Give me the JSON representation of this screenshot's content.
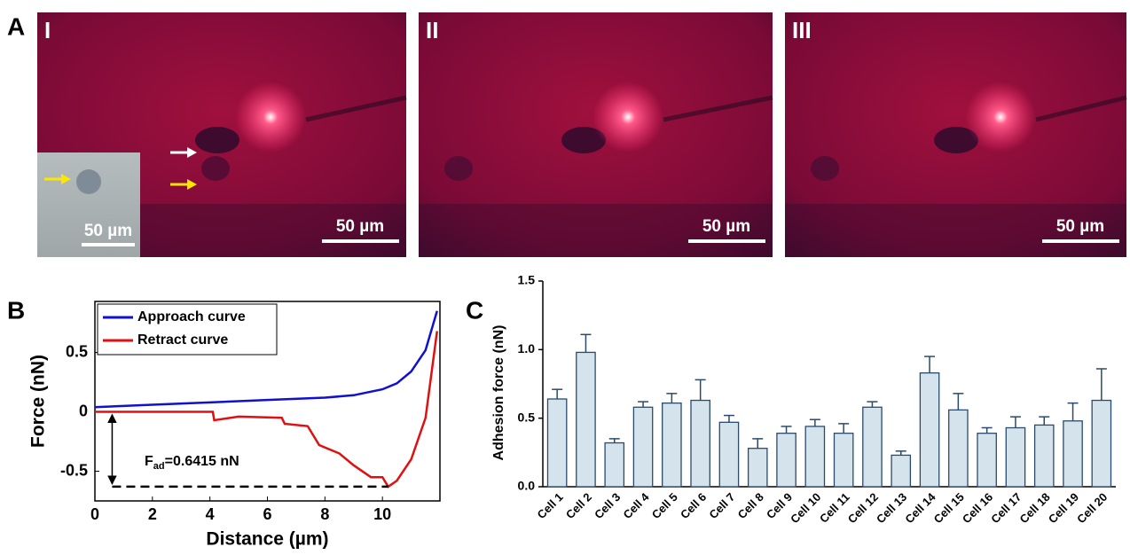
{
  "panels": {
    "labels": [
      "A",
      "B",
      "C"
    ],
    "images": [
      {
        "label": "I",
        "scale_bar": "50 µm"
      },
      {
        "label": "II",
        "scale_bar": "50 µm"
      },
      {
        "label": "III",
        "scale_bar": "50 µm"
      }
    ],
    "inset": {
      "scale_bar": "50 µm"
    }
  },
  "chart_data": [
    {
      "type": "line",
      "xlabel": "Distance (µm)",
      "ylabel": "Force (nN)",
      "xlim": [
        0,
        12
      ],
      "xticks": [
        0,
        2,
        4,
        6,
        8,
        10
      ],
      "ylim": [
        -0.75,
        0.93
      ],
      "yticks": [
        -0.5,
        0,
        0.5
      ],
      "legend": "upper left",
      "annotation": {
        "main": "F",
        "sub": "ad",
        "rest": "=0.6415 nN"
      },
      "series": [
        {
          "name": "Approach curve",
          "color": "#1010d0",
          "x": [
            0,
            2,
            4,
            6,
            8,
            9,
            10,
            10.5,
            11,
            11.5,
            11.9
          ],
          "values": [
            0.04,
            0.06,
            0.08,
            0.1,
            0.12,
            0.14,
            0.19,
            0.24,
            0.34,
            0.52,
            0.85
          ]
        },
        {
          "name": "Retract curve",
          "color": "#e01010",
          "x": [
            0,
            4.1,
            4.15,
            5,
            6.5,
            6.6,
            7.4,
            7.8,
            8.5,
            9,
            9.6,
            10,
            10.2,
            10.5,
            11,
            11.5,
            11.9
          ],
          "values": [
            0,
            0,
            -0.07,
            -0.04,
            -0.05,
            -0.1,
            -0.12,
            -0.28,
            -0.35,
            -0.45,
            -0.55,
            -0.55,
            -0.63,
            -0.58,
            -0.4,
            -0.05,
            0.68
          ]
        }
      ]
    },
    {
      "type": "bar",
      "ylabel": "Adhesion force (nN)",
      "categories": [
        "Cell 1",
        "Cell 2",
        "Cell 3",
        "Cell 4",
        "Cell 5",
        "Cell 6",
        "Cell 7",
        "Cell 8",
        "Cell 9",
        "Cell 10",
        "Cell 11",
        "Cell 12",
        "Cell 13",
        "Cell 14",
        "Cell 15",
        "Cell 16",
        "Cell 17",
        "Cell 18",
        "Cell 19",
        "Cell 20"
      ],
      "values": [
        0.64,
        0.98,
        0.32,
        0.58,
        0.61,
        0.63,
        0.47,
        0.28,
        0.39,
        0.44,
        0.39,
        0.58,
        0.23,
        0.83,
        0.56,
        0.39,
        0.43,
        0.45,
        0.48,
        0.63
      ],
      "errors": [
        0.07,
        0.13,
        0.03,
        0.04,
        0.07,
        0.15,
        0.05,
        0.07,
        0.05,
        0.05,
        0.07,
        0.04,
        0.03,
        0.12,
        0.12,
        0.04,
        0.08,
        0.06,
        0.13,
        0.23
      ],
      "color": "#d4e3ec",
      "edge_color": "#2b4a6b",
      "ylim": [
        0,
        1.5
      ],
      "yticks": [
        {
          "value": 0,
          "label": "0.0"
        },
        {
          "value": 0.5,
          "label": "0.5"
        },
        {
          "value": 1,
          "label": "1.0"
        },
        {
          "value": 1.5,
          "label": "1.5"
        }
      ]
    }
  ]
}
